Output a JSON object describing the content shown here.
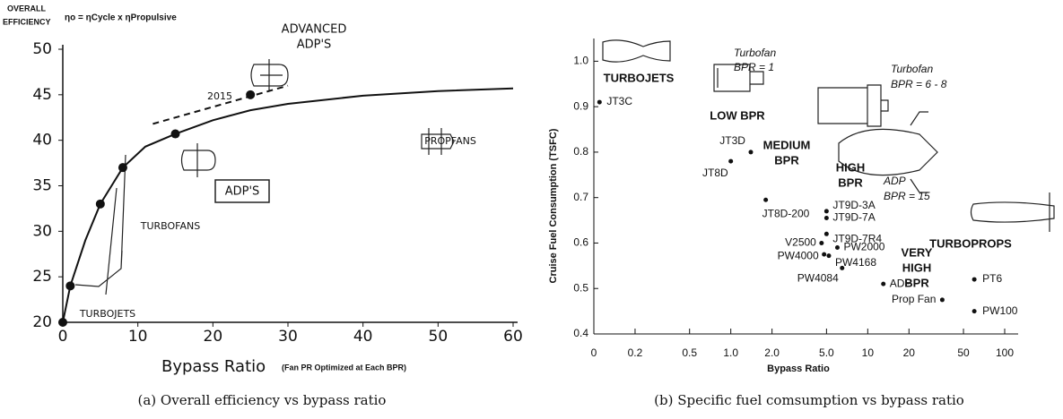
{
  "chart_data": [
    {
      "type": "line",
      "y_label": [
        "OVERALL",
        "EFFICIENCY"
      ],
      "formula": "ηo = ηCycle x ηPropulsive",
      "x_label": "Bypass Ratio",
      "x_label_note": "(Fan PR Optimized at Each BPR)",
      "caption": "(a) Overall efficiency vs bypass ratio",
      "series": [
        {
          "x": [
            0,
            1,
            3,
            5,
            8,
            11,
            15,
            20,
            25,
            30,
            40,
            50,
            60
          ],
          "values": [
            20,
            24,
            29,
            33,
            37,
            39.3,
            40.7,
            42.2,
            43.3,
            44,
            44.9,
            45.4,
            45.7
          ],
          "color": "#111",
          "style": "solid"
        },
        {
          "x": [
            12,
            30
          ],
          "values": [
            41.8,
            46
          ],
          "color": "#111",
          "style": "dashed"
        }
      ],
      "markers": {
        "x": [
          0,
          1,
          5,
          8,
          15,
          25
        ],
        "values": [
          20,
          24,
          33,
          37,
          40.7,
          45
        ]
      },
      "annotations": [
        "ADVANCED",
        "ADP'S",
        "2015",
        "PROPFANS",
        "ADP'S",
        "TURBOFANS",
        "TURBOJETS"
      ],
      "xlim": [
        0,
        60
      ],
      "xticks": [
        0,
        10,
        20,
        30,
        40,
        50,
        60
      ],
      "ylim": [
        20,
        50
      ],
      "yticks": [
        20,
        25,
        30,
        35,
        40,
        45,
        50
      ]
    },
    {
      "type": "scatter",
      "y_label": "Cruise Fuel Consumption (TSFC)",
      "x_label": "Bypass Ratio",
      "caption": "(b) Specific fuel comsumption vs bypass ratio",
      "x_scale": "log",
      "x": [
        0.11,
        1.4,
        1.0,
        1.8,
        5.0,
        5.0,
        5.0,
        4.6,
        4.8,
        6.0,
        5.2,
        6.5,
        13,
        35,
        60,
        60
      ],
      "values": [
        0.91,
        0.8,
        0.78,
        0.695,
        0.67,
        0.655,
        0.62,
        0.6,
        0.575,
        0.59,
        0.572,
        0.545,
        0.51,
        0.475,
        0.52,
        0.45
      ],
      "point_labels": [
        "JT3C",
        "JT3D",
        "JT8D",
        "JT8D-200",
        "JT9D-3A",
        "JT9D-7A",
        "JT9D-7R4",
        "V2500",
        "PW4000",
        "PW2000",
        "PW4168",
        "PW4084",
        "ADP",
        "Prop Fan",
        "PT6",
        "PW100"
      ],
      "color": "#111",
      "annotations": [
        "TURBOJETS",
        "Turbofan",
        "BPR = 1",
        "LOW BPR",
        "MEDIUM",
        "BPR",
        "HIGH",
        "BPR",
        "Turbofan",
        "BPR = 6 - 8",
        "ADP",
        "BPR = 15",
        "VERY",
        "HIGH",
        "BPR",
        "TURBOPROPS"
      ],
      "xlim": [
        0.1,
        100
      ],
      "xticks": [
        {
          "value": 0.1,
          "label": "0"
        },
        0.2,
        0.5,
        {
          "value": 1,
          "label": "1.0"
        },
        {
          "value": 2,
          "label": "2.0"
        },
        {
          "value": 5,
          "label": "5.0"
        },
        10,
        20,
        50,
        100
      ],
      "ylim": [
        0.4,
        1.05
      ],
      "yticks": [
        0.4,
        0.5,
        0.6,
        0.7,
        0.8,
        0.9,
        {
          "value": 1,
          "label": "1.0"
        }
      ]
    }
  ]
}
